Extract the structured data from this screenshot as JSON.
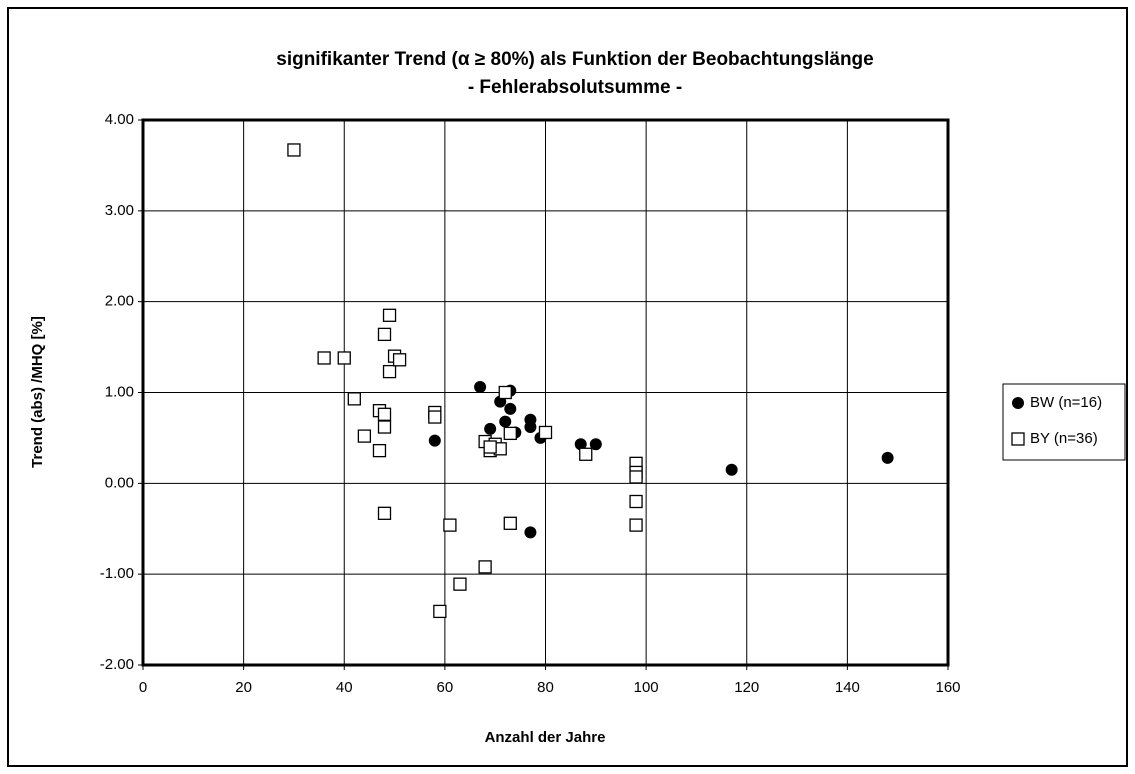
{
  "chart_data": {
    "type": "scatter",
    "title": [
      "signifikanter Trend (α ≥ 80%) als Funktion der Beobachtungslänge",
      "- Fehlerabsolutsumme -"
    ],
    "x_label": "Anzahl der Jahre",
    "y_label": "Trend (abs) /MHQ [%]",
    "xlim": [
      0,
      160
    ],
    "xticks": [
      0,
      20,
      40,
      60,
      80,
      100,
      120,
      140,
      160
    ],
    "ylim": [
      -2,
      4
    ],
    "yticks": [
      {
        "value": -2,
        "label": "-2.00"
      },
      {
        "value": -1,
        "label": "-1.00"
      },
      {
        "value": 0,
        "label": "0.00"
      },
      {
        "value": 1,
        "label": "1.00"
      },
      {
        "value": 2,
        "label": "2.00"
      },
      {
        "value": 3,
        "label": "3.00"
      },
      {
        "value": 4,
        "label": "4.00"
      }
    ],
    "grid": true,
    "legend": "right",
    "series": [
      {
        "name": "BW (n=16)",
        "color": "#000000",
        "marker": "circle",
        "x": [
          58,
          67,
          69,
          71,
          72,
          73,
          73,
          74,
          77,
          77,
          77,
          79,
          87,
          90,
          117,
          148
        ],
        "values": [
          0.47,
          1.06,
          0.6,
          0.9,
          0.68,
          1.02,
          0.82,
          0.56,
          0.7,
          0.62,
          -0.54,
          0.5,
          0.43,
          0.43,
          0.15,
          0.28
        ]
      },
      {
        "name": "BY (n=36)",
        "color": "#000000",
        "marker": "square",
        "x": [
          30,
          36,
          40,
          42,
          44,
          47,
          47,
          48,
          48,
          48,
          48,
          49,
          49,
          50,
          51,
          58,
          58,
          59,
          61,
          63,
          68,
          68,
          69,
          70,
          71,
          72,
          73,
          73,
          80,
          88,
          98,
          98,
          98,
          98,
          98,
          69
        ],
        "values": [
          3.67,
          1.38,
          1.38,
          0.93,
          0.52,
          0.8,
          0.36,
          1.64,
          0.76,
          0.62,
          -0.33,
          1.85,
          1.23,
          1.4,
          1.36,
          0.78,
          0.73,
          -1.41,
          -0.46,
          -1.11,
          0.46,
          -0.92,
          0.36,
          0.43,
          0.38,
          1.0,
          -0.44,
          0.55,
          0.56,
          0.32,
          0.22,
          0.12,
          0.07,
          -0.2,
          -0.46,
          0.4
        ]
      }
    ]
  }
}
